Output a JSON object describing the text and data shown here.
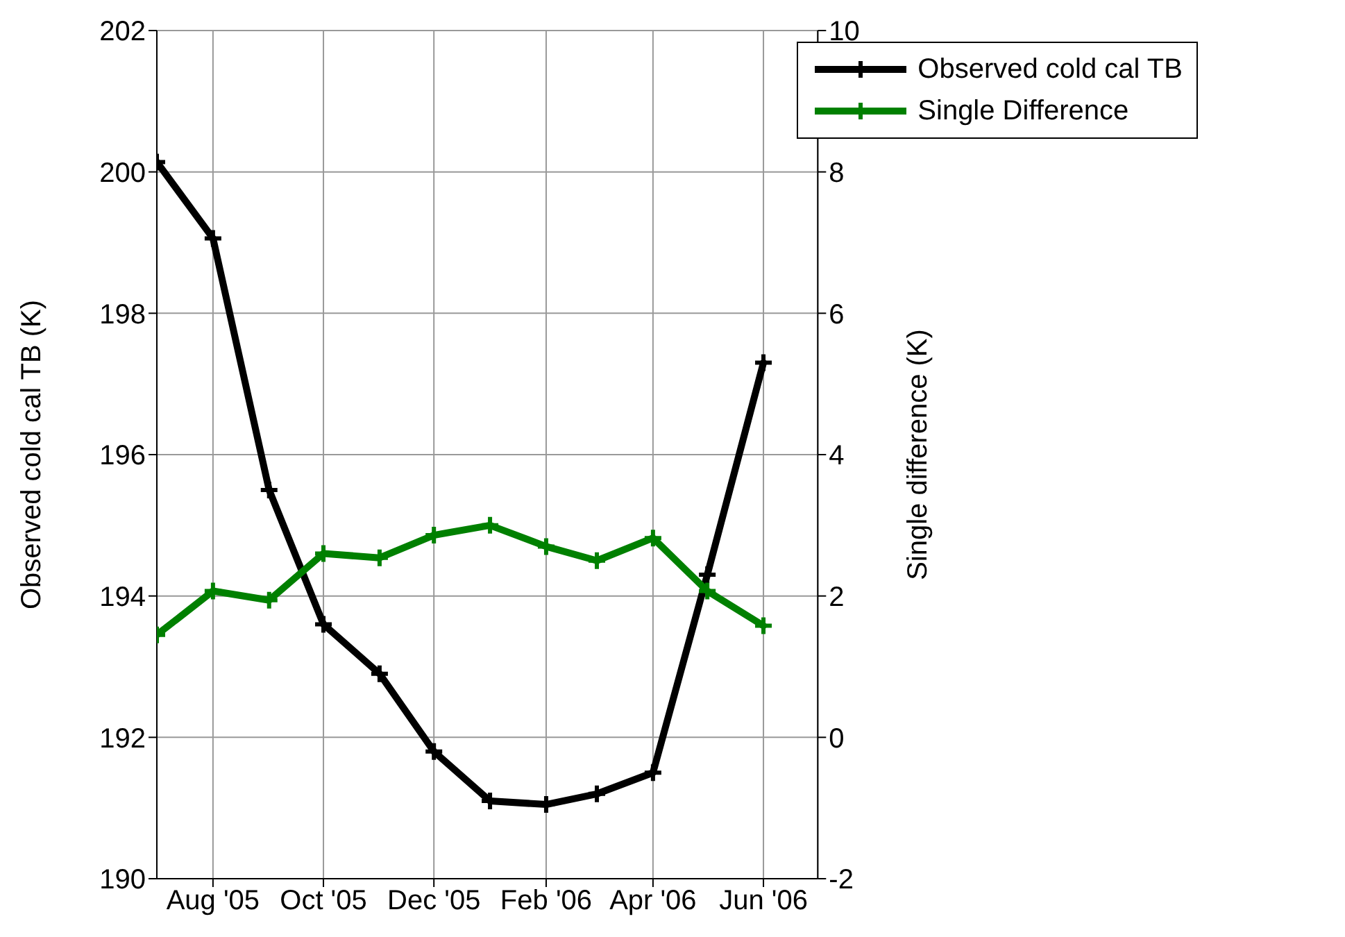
{
  "chart_data": {
    "type": "line",
    "ylabel": "Observed cold cal TB (K)",
    "y2label": "Single difference (K)",
    "x": [
      "2005-07",
      "2005-08",
      "2005-09",
      "2005-10",
      "2005-11",
      "2005-12",
      "2006-01",
      "2006-02",
      "2006-03",
      "2006-04",
      "2006-05",
      "2006-06"
    ],
    "series": [
      {
        "name": "Observed cold cal TB",
        "color": "#000000",
        "values": [
          200.14,
          199.06,
          195.5,
          193.6,
          192.9,
          191.8,
          191.1,
          191.05,
          191.2,
          191.5,
          194.3,
          197.3
        ]
      },
      {
        "name": "Single Difference",
        "color": "#008000",
        "axis": "y2",
        "values": [
          1.45,
          2.07,
          1.94,
          2.6,
          2.54,
          2.86,
          3.0,
          2.7,
          2.5,
          2.82,
          2.07,
          1.58
        ]
      }
    ],
    "xlim": [
      "2005-07",
      "2006-07"
    ],
    "xticks": [
      {
        "value": "2005-08",
        "label": "Aug '05"
      },
      {
        "value": "2005-10",
        "label": "Oct '05"
      },
      {
        "value": "2005-12",
        "label": "Dec '05"
      },
      {
        "value": "2006-02",
        "label": "Feb '06"
      },
      {
        "value": "2006-04",
        "label": "Apr '06"
      },
      {
        "value": "2006-06",
        "label": "Jun '06"
      }
    ],
    "ylim": [
      190,
      202
    ],
    "yticks": [
      190,
      192,
      194,
      196,
      198,
      200,
      202
    ],
    "y2lim": [
      -2,
      10
    ],
    "y2ticks": [
      -2,
      0,
      2,
      4,
      6,
      8,
      10
    ],
    "grid": true,
    "legend": "top right",
    "marker": "cross",
    "line_style": "solid"
  }
}
